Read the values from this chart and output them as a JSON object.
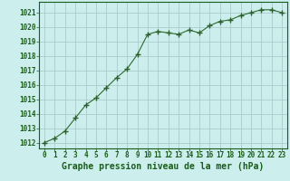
{
  "x": [
    0,
    1,
    2,
    3,
    4,
    5,
    6,
    7,
    8,
    9,
    10,
    11,
    12,
    13,
    14,
    15,
    16,
    17,
    18,
    19,
    20,
    21,
    22,
    23
  ],
  "y": [
    1012.0,
    1012.3,
    1012.8,
    1013.7,
    1014.6,
    1015.1,
    1015.8,
    1016.5,
    1017.1,
    1018.1,
    1019.5,
    1019.7,
    1019.6,
    1019.5,
    1019.8,
    1019.6,
    1020.1,
    1020.4,
    1020.5,
    1020.8,
    1021.0,
    1021.2,
    1021.2,
    1021.0
  ],
  "line_color": "#2d6a2d",
  "marker": "+",
  "marker_color": "#2d5e2d",
  "bg_color": "#cceeed",
  "grid_color": "#aacccc",
  "xlabel": "Graphe pression niveau de la mer (hPa)",
  "xlabel_color": "#1a5c1a",
  "xlabel_fontsize": 7.0,
  "ylabel_ticks": [
    1012,
    1013,
    1014,
    1015,
    1016,
    1017,
    1018,
    1019,
    1020,
    1021
  ],
  "ylim": [
    1011.6,
    1021.75
  ],
  "xlim": [
    -0.5,
    23.5
  ],
  "xticks": [
    0,
    1,
    2,
    3,
    4,
    5,
    6,
    7,
    8,
    9,
    10,
    11,
    12,
    13,
    14,
    15,
    16,
    17,
    18,
    19,
    20,
    21,
    22,
    23
  ],
  "tick_fontsize": 5.5,
  "tick_color": "#1a5c1a"
}
